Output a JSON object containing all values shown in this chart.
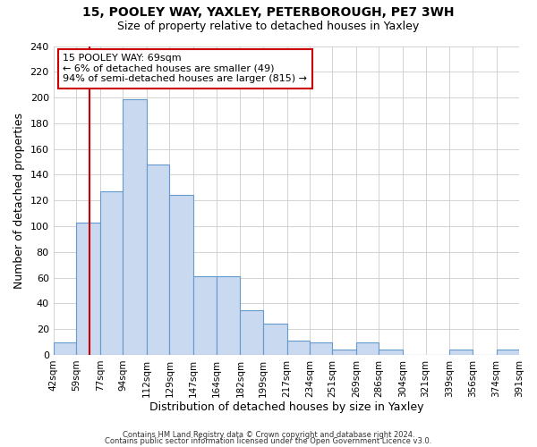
{
  "title": "15, POOLEY WAY, YAXLEY, PETERBOROUGH, PE7 3WH",
  "subtitle": "Size of property relative to detached houses in Yaxley",
  "xlabel": "Distribution of detached houses by size in Yaxley",
  "ylabel": "Number of detached properties",
  "bin_edges": [
    42,
    59,
    77,
    94,
    112,
    129,
    147,
    164,
    182,
    199,
    217,
    234,
    251,
    269,
    286,
    304,
    321,
    339,
    356,
    374,
    391
  ],
  "bar_heights": [
    10,
    103,
    127,
    199,
    148,
    124,
    61,
    61,
    35,
    24,
    11,
    10,
    4,
    10,
    4,
    0,
    0,
    4,
    0,
    4
  ],
  "bar_color": "#c9d9f0",
  "bar_edge_color": "#6699cc",
  "vline_x": 69,
  "vline_color": "#cc0000",
  "annotation_line1": "15 POOLEY WAY: 69sqm",
  "annotation_line2": "← 6% of detached houses are smaller (49)",
  "annotation_line3": "94% of semi-detached houses are larger (815) →",
  "annotation_box_color": "#cc0000",
  "annotation_box_fill": "#ffffff",
  "ylim": [
    0,
    240
  ],
  "yticks": [
    0,
    20,
    40,
    60,
    80,
    100,
    120,
    140,
    160,
    180,
    200,
    220,
    240
  ],
  "xtick_labels": [
    "42sqm",
    "59sqm",
    "77sqm",
    "94sqm",
    "112sqm",
    "129sqm",
    "147sqm",
    "164sqm",
    "182sqm",
    "199sqm",
    "217sqm",
    "234sqm",
    "251sqm",
    "269sqm",
    "286sqm",
    "304sqm",
    "321sqm",
    "339sqm",
    "356sqm",
    "374sqm",
    "391sqm"
  ],
  "footnote1": "Contains HM Land Registry data © Crown copyright and database right 2024.",
  "footnote2": "Contains public sector information licensed under the Open Government Licence v3.0.",
  "title_fontsize": 10,
  "subtitle_fontsize": 9,
  "grid_color": "#cccccc",
  "background_color": "#ffffff"
}
